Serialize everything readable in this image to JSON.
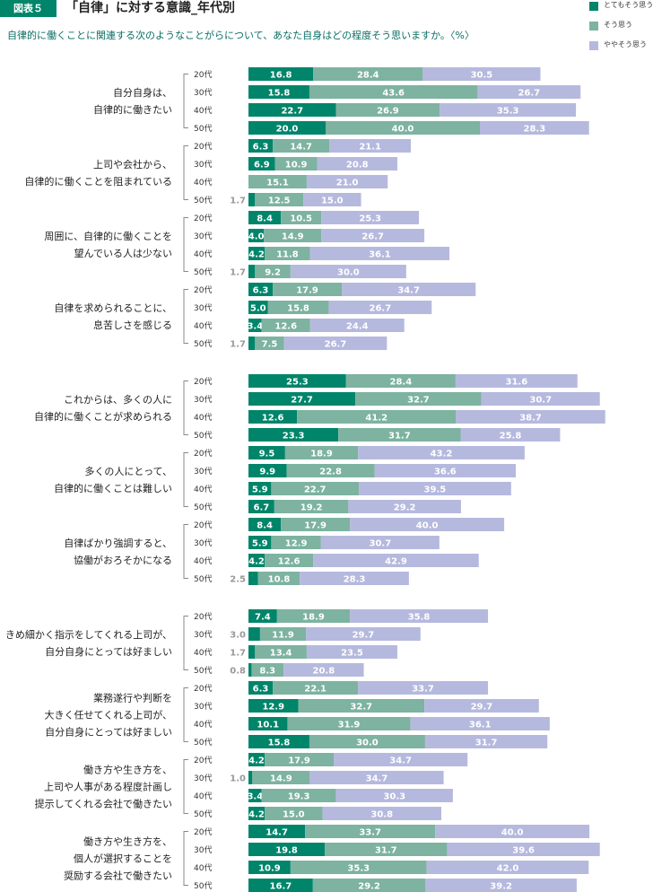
{
  "header": {
    "badge": "図表５",
    "title": "「自律」に対する意識_年代別",
    "subtitle": "自律的に働くことに関連する次のようなことがらについて、あなた自身はどの程度そう思いますか。〈%〉"
  },
  "colors": {
    "strong": "#00856a",
    "agree": "#7db3a0",
    "somewhat": "#b6b9de"
  },
  "chart_data": {
    "type": "bar",
    "stacked": true,
    "orientation": "horizontal",
    "legend_position": "top-right",
    "grid": false,
    "series": [
      {
        "name": "とてもそう思う"
      },
      {
        "name": "そう思う"
      },
      {
        "name": "ややそう思う"
      }
    ],
    "groups": [
      {
        "label": [
          "自分自身は、",
          "自律的に働きたい"
        ],
        "rows": [
          {
            "age": "20代",
            "values": [
              16.8,
              28.4,
              30.5
            ]
          },
          {
            "age": "30代",
            "values": [
              15.8,
              43.6,
              26.7
            ]
          },
          {
            "age": "40代",
            "values": [
              22.7,
              26.9,
              35.3
            ]
          },
          {
            "age": "50代",
            "values": [
              20.0,
              40.0,
              28.3
            ]
          }
        ]
      },
      {
        "label": [
          "上司や会社から、",
          "自律的に働くことを阻まれている"
        ],
        "rows": [
          {
            "age": "20代",
            "values": [
              6.3,
              14.7,
              21.1
            ]
          },
          {
            "age": "30代",
            "values": [
              6.9,
              10.9,
              20.8
            ]
          },
          {
            "age": "40代",
            "values": [
              0,
              15.1,
              21.0
            ]
          },
          {
            "age": "50代",
            "values": [
              1.7,
              12.5,
              15.0
            ]
          }
        ]
      },
      {
        "label": [
          "周囲に、自律的に働くことを",
          "望んでいる人は少ない"
        ],
        "rows": [
          {
            "age": "20代",
            "values": [
              8.4,
              10.5,
              25.3
            ]
          },
          {
            "age": "30代",
            "values": [
              4.0,
              14.9,
              26.7
            ]
          },
          {
            "age": "40代",
            "values": [
              4.2,
              11.8,
              36.1
            ]
          },
          {
            "age": "50代",
            "values": [
              1.7,
              9.2,
              30.0
            ]
          }
        ]
      },
      {
        "label": [
          "自律を求められることに、",
          "息苦しさを感じる"
        ],
        "rows": [
          {
            "age": "20代",
            "values": [
              6.3,
              17.9,
              34.7
            ]
          },
          {
            "age": "30代",
            "values": [
              5.0,
              15.8,
              26.7
            ]
          },
          {
            "age": "40代",
            "values": [
              3.4,
              12.6,
              24.4
            ]
          },
          {
            "age": "50代",
            "values": [
              1.7,
              7.5,
              26.7
            ]
          }
        ]
      },
      {
        "label": [
          "これからは、多くの人に",
          "自律的に働くことが求められる"
        ],
        "rows": [
          {
            "age": "20代",
            "values": [
              25.3,
              28.4,
              31.6
            ]
          },
          {
            "age": "30代",
            "values": [
              27.7,
              32.7,
              30.7
            ]
          },
          {
            "age": "40代",
            "values": [
              12.6,
              41.2,
              38.7
            ]
          },
          {
            "age": "50代",
            "values": [
              23.3,
              31.7,
              25.8
            ]
          }
        ]
      },
      {
        "label": [
          "多くの人にとって、",
          "自律的に働くことは難しい"
        ],
        "rows": [
          {
            "age": "20代",
            "values": [
              9.5,
              18.9,
              43.2
            ]
          },
          {
            "age": "30代",
            "values": [
              9.9,
              22.8,
              36.6
            ]
          },
          {
            "age": "40代",
            "values": [
              5.9,
              22.7,
              39.5
            ]
          },
          {
            "age": "50代",
            "values": [
              6.7,
              19.2,
              29.2
            ]
          }
        ]
      },
      {
        "label": [
          "自律ばかり強調すると、",
          "協働がおろそかになる"
        ],
        "rows": [
          {
            "age": "20代",
            "values": [
              8.4,
              17.9,
              40.0
            ]
          },
          {
            "age": "30代",
            "values": [
              5.9,
              12.9,
              30.7
            ]
          },
          {
            "age": "40代",
            "values": [
              4.2,
              12.6,
              42.9
            ]
          },
          {
            "age": "50代",
            "values": [
              2.5,
              10.8,
              28.3
            ]
          }
        ]
      },
      {
        "label": [
          "きめ細かく指示をしてくれる上司が、",
          "自分自身にとっては好ましい"
        ],
        "rows": [
          {
            "age": "20代",
            "values": [
              7.4,
              18.9,
              35.8
            ]
          },
          {
            "age": "30代",
            "values": [
              3.0,
              11.9,
              29.7
            ]
          },
          {
            "age": "40代",
            "values": [
              1.7,
              13.4,
              23.5
            ]
          },
          {
            "age": "50代",
            "values": [
              0.8,
              8.3,
              20.8
            ]
          }
        ]
      },
      {
        "label": [
          "業務遂行や判断を",
          "大きく任せてくれる上司が、",
          "自分自身にとっては好ましい"
        ],
        "rows": [
          {
            "age": "20代",
            "values": [
              6.3,
              22.1,
              33.7
            ]
          },
          {
            "age": "30代",
            "values": [
              12.9,
              32.7,
              29.7
            ]
          },
          {
            "age": "40代",
            "values": [
              10.1,
              31.9,
              36.1
            ]
          },
          {
            "age": "50代",
            "values": [
              15.8,
              30.0,
              31.7
            ]
          }
        ]
      },
      {
        "label": [
          "働き方や生き方を、",
          "上司や人事がある程度計画し",
          "提示してくれる会社で働きたい"
        ],
        "rows": [
          {
            "age": "20代",
            "values": [
              4.2,
              17.9,
              34.7
            ]
          },
          {
            "age": "30代",
            "values": [
              1.0,
              14.9,
              34.7
            ]
          },
          {
            "age": "40代",
            "values": [
              3.4,
              19.3,
              30.3
            ]
          },
          {
            "age": "50代",
            "values": [
              4.2,
              15.0,
              30.8
            ]
          }
        ]
      },
      {
        "label": [
          "働き方や生き方を、",
          "個人が選択することを",
          "奨励する会社で働きたい"
        ],
        "rows": [
          {
            "age": "20代",
            "values": [
              14.7,
              33.7,
              40.0
            ]
          },
          {
            "age": "30代",
            "values": [
              19.8,
              31.7,
              39.6
            ]
          },
          {
            "age": "40代",
            "values": [
              10.9,
              35.3,
              42.0
            ]
          },
          {
            "age": "50代",
            "values": [
              16.7,
              29.2,
              39.2
            ]
          }
        ]
      }
    ]
  }
}
